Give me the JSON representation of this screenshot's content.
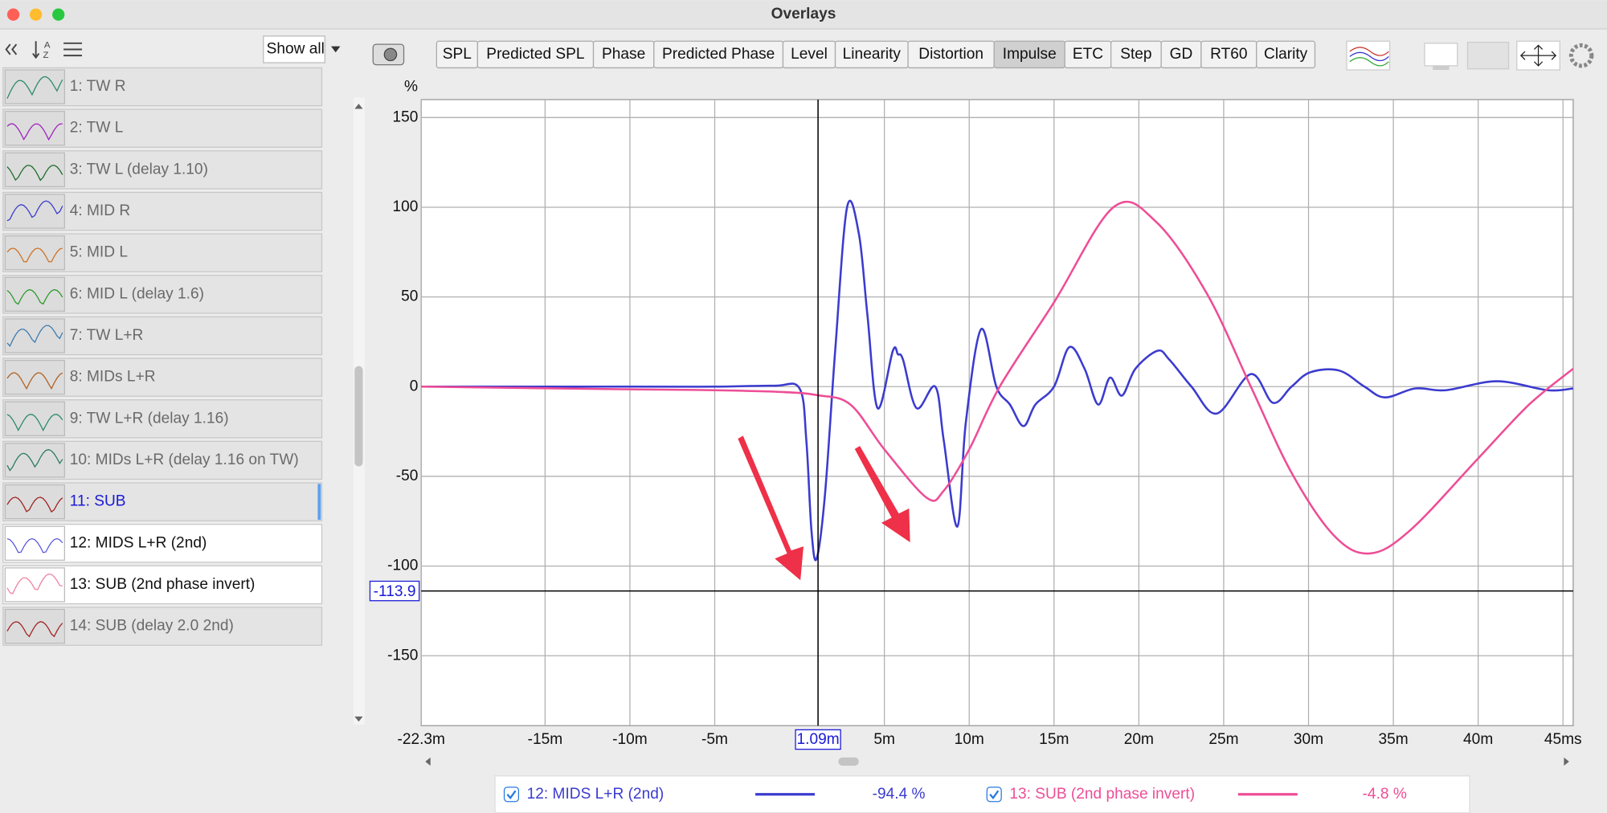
{
  "window": {
    "title": "Overlays"
  },
  "sidebar": {
    "show_all": "Show all",
    "selected_item": 10,
    "shown_items": [
      11,
      12
    ],
    "items": [
      "1: TW R",
      "2: TW L",
      "3: TW L (delay 1.10)",
      "4: MID R",
      "5: MID L",
      "6: MID L (delay 1.6)",
      "7: TW L+R",
      "8: MIDs L+R",
      "9: TW L+R (delay 1.16)",
      "10: MIDs L+R (delay 1.16 on TW)",
      "11: SUB",
      "12: MIDS L+R (2nd)",
      "13: SUB (2nd phase invert)",
      "14: SUB (delay 2.0 2nd)"
    ]
  },
  "toolbar": {
    "selected_tab": 7,
    "tabs": [
      "SPL",
      "Predicted SPL",
      "Phase",
      "Predicted Phase",
      "Level",
      "Linearity",
      "Distortion",
      "Impulse",
      "ETC",
      "Step",
      "GD",
      "RT60",
      "Clarity"
    ]
  },
  "chart_data": {
    "type": "line",
    "y_unit": "%",
    "grid": true,
    "xlim": [
      -22.3,
      45.6
    ],
    "ylim": [
      -189,
      160
    ],
    "xticks": [
      {
        "value": -22.3,
        "label": "-22.3m"
      },
      {
        "value": -15,
        "label": "-15m"
      },
      {
        "value": -10,
        "label": "-10m"
      },
      {
        "value": -5,
        "label": "-5m"
      },
      {
        "value": 5,
        "label": "5m"
      },
      {
        "value": 10,
        "label": "10m"
      },
      {
        "value": 15,
        "label": "15m"
      },
      {
        "value": 20,
        "label": "20m"
      },
      {
        "value": 25,
        "label": "25m"
      },
      {
        "value": 30,
        "label": "30m"
      },
      {
        "value": 35,
        "label": "35m"
      },
      {
        "value": 40,
        "label": "40m"
      },
      {
        "value": 45,
        "label": "45ms"
      }
    ],
    "yticks": [
      150,
      100,
      50,
      0,
      -50,
      -100,
      -150
    ],
    "cursor": {
      "x": {
        "value": 1.09,
        "label": "1.09m"
      },
      "y": -113.9
    },
    "series": [
      {
        "name": "12: MIDS L+R (2nd)",
        "color": "#3b3bcf",
        "x": [
          -22.3,
          -10,
          -5,
          -1.5,
          0,
          0.4,
          0.7,
          1.0,
          1.5,
          2.1,
          2.8,
          3.5,
          4.0,
          4.6,
          5.5,
          5.8,
          6.1,
          6.9,
          8.0,
          8.5,
          9.3,
          9.8,
          10.7,
          11.6,
          12.4,
          13.2,
          13.9,
          15.0,
          15.9,
          16.8,
          17.6,
          18.3,
          19.0,
          19.8,
          21.1,
          21.8,
          23.1,
          24.6,
          26.6,
          27.9,
          29.0,
          30.1,
          31.8,
          33.3,
          34.5,
          36.3,
          38.1,
          41.1,
          44.1,
          45.6
        ],
        "values": [
          0,
          0,
          0,
          0.5,
          -1,
          -30,
          -80,
          -96,
          -60,
          20,
          100,
          85,
          40,
          -12,
          20,
          18,
          15,
          -12,
          0,
          -30,
          -78,
          -20,
          32,
          0,
          -10,
          -22,
          -10,
          0,
          22,
          10,
          -10,
          5,
          -5,
          10,
          20,
          15,
          0,
          -15,
          7,
          -9,
          0,
          8,
          9,
          0,
          -6,
          -1,
          -2,
          3,
          -2,
          -1
        ]
      },
      {
        "name": "13: SUB (2nd phase invert)",
        "color": "#ee4d96",
        "x": [
          -22.3,
          -10,
          -5,
          -1,
          1.09,
          3,
          5,
          7.5,
          8.5,
          10,
          11.8,
          15,
          18.5,
          21,
          24,
          26.6,
          29,
          31.5,
          33.6,
          36,
          40,
          43,
          45.6
        ],
        "values": [
          0,
          -1.5,
          -2,
          -3,
          -4.8,
          -10,
          -35,
          -62,
          -58,
          -35,
          0,
          47,
          100,
          92,
          52,
          0,
          -48,
          -83,
          -93,
          -80,
          -40,
          -10,
          10
        ]
      }
    ]
  },
  "legend": {
    "readouts": [
      {
        "value": -94.4,
        "label": "-94.4 %"
      },
      {
        "value": -4.8,
        "label": "-4.8 %"
      }
    ]
  }
}
